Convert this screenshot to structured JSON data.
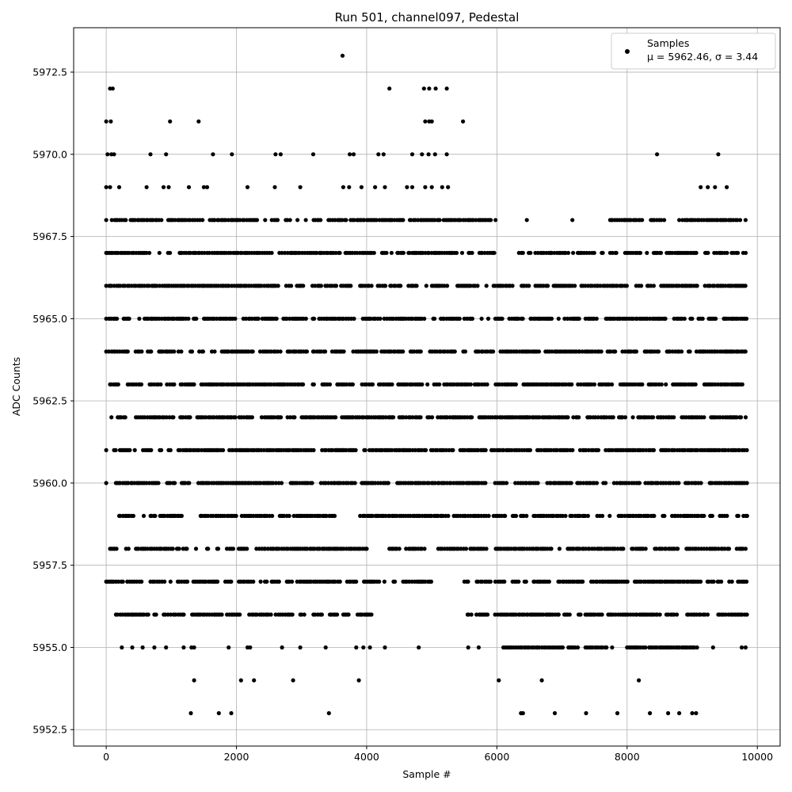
{
  "chart_data": {
    "type": "scatter",
    "title": "Run 501, channel097, Pedestal",
    "xlabel": "Sample #",
    "ylabel": "ADC Counts",
    "xlim": [
      -500,
      10350
    ],
    "ylim": [
      5952.0,
      5973.85
    ],
    "x_ticks": [
      0,
      2000,
      4000,
      6000,
      8000,
      10000
    ],
    "x_tick_labels": [
      "0",
      "2000",
      "4000",
      "6000",
      "8000",
      "10000"
    ],
    "y_ticks": [
      5952.5,
      5955.0,
      5957.5,
      5960.0,
      5962.5,
      5965.0,
      5967.5,
      5970.0,
      5972.5
    ],
    "y_tick_labels": [
      "5952.5",
      "5955.0",
      "5957.5",
      "5960.0",
      "5962.5",
      "5965.0",
      "5967.5",
      "5970.0",
      "5972.5"
    ],
    "grid": true,
    "legend": {
      "placement": "top-right",
      "entries": [
        {
          "label": "Samples",
          "stat": "μ = 5962.46, σ = 3.44"
        }
      ]
    },
    "series": [
      {
        "name": "Samples",
        "color": "#000000",
        "marker": "circle",
        "n_points": 9850,
        "points": [
          [
            0,
            5971
          ],
          [
            60,
            5972
          ],
          [
            100,
            5972
          ],
          [
            70,
            5971
          ],
          [
            1420,
            5971
          ],
          [
            980,
            5971
          ],
          [
            5480,
            5971
          ],
          [
            3630,
            5973
          ],
          [
            4350,
            5972
          ],
          [
            4880,
            5972
          ],
          [
            4960,
            5972
          ],
          [
            5060,
            5972
          ],
          [
            5230,
            5972
          ],
          [
            4900,
            5971
          ],
          [
            4960,
            5971
          ],
          [
            5000,
            5971
          ],
          [
            20,
            5970
          ],
          [
            80,
            5970
          ],
          [
            120,
            5970
          ],
          [
            680,
            5970
          ],
          [
            920,
            5970
          ],
          [
            1640,
            5970
          ],
          [
            1930,
            5970
          ],
          [
            2600,
            5970
          ],
          [
            2680,
            5970
          ],
          [
            3180,
            5970
          ],
          [
            3740,
            5970
          ],
          [
            3800,
            5970
          ],
          [
            4180,
            5970
          ],
          [
            4260,
            5970
          ],
          [
            4700,
            5970
          ],
          [
            4850,
            5970
          ],
          [
            4950,
            5970
          ],
          [
            5050,
            5970
          ],
          [
            5230,
            5970
          ],
          [
            8460,
            5970
          ],
          [
            9400,
            5970
          ],
          [
            0,
            5969
          ],
          [
            60,
            5969
          ],
          [
            200,
            5969
          ],
          [
            620,
            5969
          ],
          [
            880,
            5969
          ],
          [
            960,
            5969
          ],
          [
            1270,
            5969
          ],
          [
            1500,
            5969
          ],
          [
            1550,
            5969
          ],
          [
            2170,
            5969
          ],
          [
            2590,
            5969
          ],
          [
            2980,
            5969
          ],
          [
            3640,
            5969
          ],
          [
            3730,
            5969
          ],
          [
            3920,
            5969
          ],
          [
            4130,
            5969
          ],
          [
            4280,
            5969
          ],
          [
            4620,
            5969
          ],
          [
            4700,
            5969
          ],
          [
            4900,
            5969
          ],
          [
            5000,
            5969
          ],
          [
            5160,
            5969
          ],
          [
            5250,
            5969
          ],
          [
            9130,
            5969
          ],
          [
            9240,
            5969
          ],
          [
            9350,
            5969
          ],
          [
            9530,
            5969
          ],
          [
            5980,
            5968
          ],
          [
            6460,
            5968
          ],
          [
            7160,
            5968
          ],
          [
            7760,
            5968
          ],
          [
            8800,
            5968
          ],
          [
            9820,
            5968
          ],
          [
            6820,
            5967
          ],
          [
            7170,
            5967
          ],
          [
            5980,
            5962
          ],
          [
            6460,
            5962
          ],
          [
            1300,
            5953
          ],
          [
            1730,
            5953
          ],
          [
            1920,
            5953
          ],
          [
            3420,
            5953
          ],
          [
            6370,
            5953
          ],
          [
            6400,
            5953
          ],
          [
            6890,
            5953
          ],
          [
            7370,
            5953
          ],
          [
            7850,
            5953
          ],
          [
            8350,
            5953
          ],
          [
            8630,
            5953
          ],
          [
            8800,
            5953
          ],
          [
            9000,
            5953
          ],
          [
            9060,
            5953
          ],
          [
            1350,
            5954
          ],
          [
            2070,
            5954
          ],
          [
            2270,
            5954
          ],
          [
            2870,
            5954
          ],
          [
            3880,
            5954
          ],
          [
            6030,
            5954
          ],
          [
            6690,
            5954
          ],
          [
            8180,
            5954
          ],
          [
            240,
            5955
          ],
          [
            400,
            5955
          ],
          [
            560,
            5955
          ],
          [
            740,
            5955
          ],
          [
            920,
            5955
          ],
          [
            1190,
            5955
          ],
          [
            1310,
            5955
          ],
          [
            1350,
            5955
          ],
          [
            1880,
            5955
          ],
          [
            2170,
            5955
          ],
          [
            2210,
            5955
          ],
          [
            2700,
            5955
          ],
          [
            2980,
            5955
          ],
          [
            3370,
            5955
          ],
          [
            3840,
            5955
          ],
          [
            3950,
            5955
          ],
          [
            4050,
            5955
          ],
          [
            4280,
            5955
          ],
          [
            4800,
            5955
          ],
          [
            5560,
            5955
          ],
          [
            5720,
            5955
          ],
          [
            7770,
            5955
          ],
          [
            8130,
            5955
          ],
          [
            8340,
            5955
          ],
          [
            8600,
            5955
          ],
          [
            9320,
            5955
          ],
          [
            9760,
            5955
          ],
          [
            9820,
            5955
          ]
        ],
        "dense_rows": [
          {
            "y": 5955,
            "ranges": [
              [
                6100,
                7700
              ],
              [
                8000,
                9100
              ]
            ]
          },
          {
            "y": 5956,
            "ranges": [
              [
                150,
                4100
              ],
              [
                5550,
                9250
              ],
              [
                9400,
                9850
              ]
            ]
          },
          {
            "y": 5957,
            "ranges": [
              [
                0,
                3600
              ],
              [
                3700,
                5000
              ],
              [
                5500,
                9850
              ]
            ]
          },
          {
            "y": 5958,
            "ranges": [
              [
                60,
                1400
              ],
              [
                1550,
                4000
              ],
              [
                4350,
                4900
              ],
              [
                5100,
                9850
              ]
            ]
          },
          {
            "y": 5959,
            "ranges": [
              [
                200,
                1200
              ],
              [
                1450,
                3600
              ],
              [
                3900,
                5900
              ],
              [
                5950,
                9850
              ]
            ]
          },
          {
            "y": 5960,
            "ranges": [
              [
                0,
                20
              ],
              [
                150,
                9850
              ]
            ]
          },
          {
            "y": 5961,
            "ranges": [
              [
                0,
                20
              ],
              [
                120,
                9850
              ]
            ]
          },
          {
            "y": 5962,
            "ranges": [
              [
                80,
                9850
              ]
            ]
          },
          {
            "y": 5963,
            "ranges": [
              [
                60,
                9850
              ]
            ]
          },
          {
            "y": 5964,
            "ranges": [
              [
                0,
                9850
              ]
            ]
          },
          {
            "y": 5965,
            "ranges": [
              [
                0,
                9850
              ]
            ]
          },
          {
            "y": 5966,
            "ranges": [
              [
                0,
                9850
              ]
            ]
          },
          {
            "y": 5967,
            "ranges": [
              [
                0,
                6000
              ],
              [
                6340,
                9850
              ]
            ]
          },
          {
            "y": 5968,
            "ranges": [
              [
                0,
                5950
              ],
              [
                7740,
                8600
              ],
              [
                8850,
                9750
              ]
            ]
          }
        ]
      }
    ]
  }
}
